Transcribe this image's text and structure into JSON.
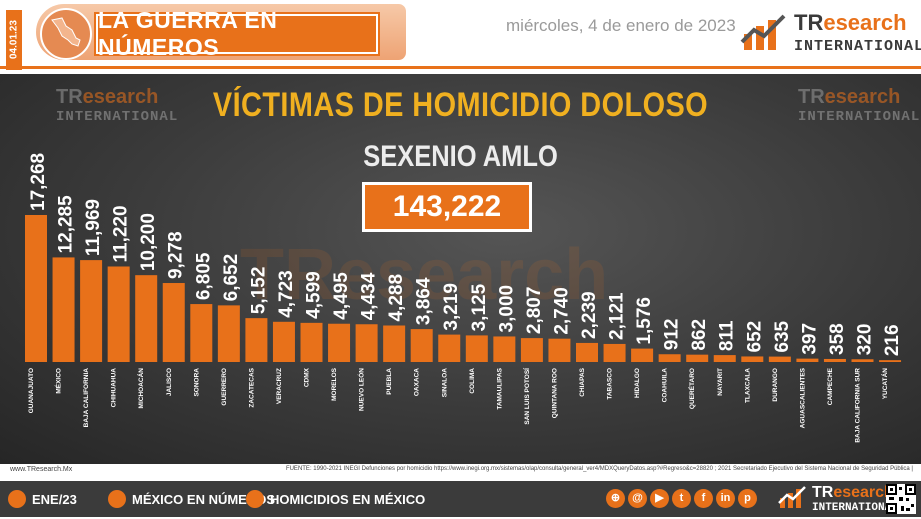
{
  "header": {
    "side_date": "04.01.23",
    "title": "LA GUERRA EN NÚMEROS",
    "date": "miércoles, 4 de enero de 2023",
    "brand_main_a": "TR",
    "brand_main_b": "esearch",
    "brand_sub": "INTERNATIONAL"
  },
  "chart_data": {
    "type": "bar",
    "title": "VÍCTIMAS DE HOMICIDIO DOLOSO",
    "subtitle": "SEXENIO AMLO",
    "total": "143,222",
    "categories": [
      "GUANAJUATO",
      "MÉXICO",
      "BAJA CALIFORNIA",
      "CHIHUAHUA",
      "MICHOACÁN",
      "JALISCO",
      "SONORA",
      "GUERRERO",
      "ZACATECAS",
      "VERACRUZ",
      "CDMX",
      "MORELOS",
      "NUEVO LEÓN",
      "PUEBLA",
      "OAXACA",
      "SINALOA",
      "COLIMA",
      "TAMAULIPAS",
      "SAN LUIS POTOSÍ",
      "QUINTANA ROO",
      "CHIAPAS",
      "TABASCO",
      "HIDALGO",
      "COAHUILA",
      "QUERÉTARO",
      "NAYARIT",
      "TLAXCALA",
      "DURANGO",
      "AGUASCALIENTES",
      "CAMPECHE",
      "BAJA CALIFORNIA SUR",
      "YUCATÁN"
    ],
    "values": [
      17268,
      12285,
      11969,
      11220,
      10200,
      9278,
      6805,
      6652,
      5152,
      4723,
      4599,
      4495,
      4434,
      4288,
      3864,
      3219,
      3125,
      3000,
      2807,
      2740,
      2239,
      2121,
      1576,
      912,
      862,
      811,
      652,
      635,
      397,
      358,
      320,
      216
    ],
    "value_labels": [
      "17,268",
      "12,285",
      "11,969",
      "11,220",
      "10,200",
      "9,278",
      "6,805",
      "6,652",
      "5,152",
      "4,723",
      "4,599",
      "4,495",
      "4,434",
      "4,288",
      "3,864",
      "3,219",
      "3,125",
      "3,000",
      "2,807",
      "2,740",
      "2,239",
      "2,121",
      "1,576",
      "912",
      "862",
      "811",
      "652",
      "635",
      "397",
      "358",
      "320",
      "216"
    ],
    "bar_color": "#e8711a",
    "label_color": "#ffffff",
    "grid": false,
    "legend": "none"
  },
  "watermark": {
    "main_a": "TR",
    "main_b": "esearch",
    "sub": "INTERNATIONAL",
    "center": "TResearch"
  },
  "source": {
    "left": "www.TResearch.Mx",
    "right": "FUENTE: 1990-2021 INEGI Defunciones por homicidio https://www.inegi.org.mx/sistemas/olap/consulta/general_ver4/MDXQueryDatos.asp?#Regreso&c=28820 ; 2021 Secretariado Ejecutivo del Sistema Nacional de Seguridad Pública |"
  },
  "footer": {
    "item1": "ENE/23",
    "item2": "MÉXICO EN NÚMEROS",
    "item3": "HOMICIDIOS EN MÉXICO",
    "brand_a": "TR",
    "brand_b": "esearch",
    "brand_sub": "INTERNATIONAL"
  }
}
